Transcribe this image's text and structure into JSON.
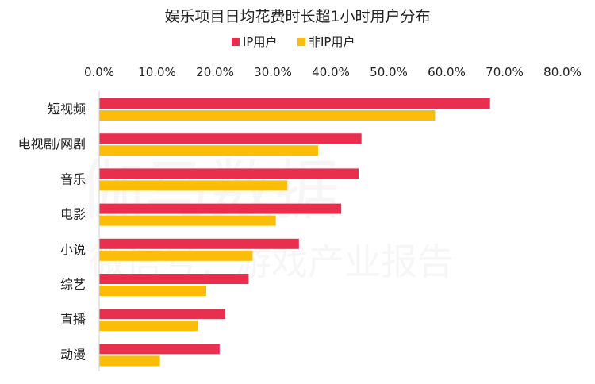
{
  "watermark": {
    "line1": "伽马数据",
    "line2": "微信号：游戏产业报告"
  },
  "chart_data": {
    "type": "bar",
    "orientation": "horizontal",
    "title": "娱乐项目日均花费时长超1小时用户分布",
    "categories": [
      "短视频",
      "电视剧/网剧",
      "音乐",
      "电影",
      "小说",
      "综艺",
      "直播",
      "动漫"
    ],
    "series": [
      {
        "name": "IP用户",
        "color": "#e8304e",
        "values": [
          67.5,
          45.3,
          44.8,
          41.8,
          34.5,
          25.8,
          21.8,
          20.8
        ]
      },
      {
        "name": "非IP用户",
        "color": "#fbbd08",
        "values": [
          58.0,
          37.8,
          32.5,
          30.5,
          26.5,
          18.5,
          17.0,
          10.5
        ]
      }
    ],
    "x_ticks": [
      "0.0%",
      "10.0%",
      "20.0%",
      "30.0%",
      "40.0%",
      "50.0%",
      "60.0%",
      "70.0%",
      "80.0%"
    ],
    "xlim": [
      0,
      80
    ],
    "axis_position": "top",
    "legend_position": "top-center",
    "grid": false
  }
}
